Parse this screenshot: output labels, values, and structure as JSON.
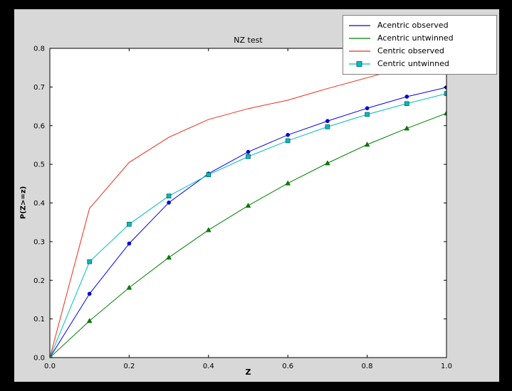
{
  "colors": {
    "window_bg": "#000000",
    "figure_bg": "#d8d8d8",
    "axes_bg": "#ffffff",
    "frame": "#000000"
  },
  "chart_data": {
    "type": "line",
    "title": "NZ test",
    "xlabel": "Z",
    "ylabel": "P(Z>=z)",
    "xlim": [
      0.0,
      1.0
    ],
    "ylim": [
      0.0,
      0.8
    ],
    "grid": false,
    "legend_position": "top-right",
    "xticks": [
      0.0,
      0.2,
      0.4,
      0.6,
      0.8,
      1.0
    ],
    "xtick_labels": [
      "0.0",
      "0.2",
      "0.4",
      "0.6",
      "0.8",
      "1.0"
    ],
    "yticks": [
      0.0,
      0.1,
      0.2,
      0.3,
      0.4,
      0.5,
      0.6,
      0.7,
      0.8
    ],
    "ytick_labels": [
      "0.0",
      "0.1",
      "0.2",
      "0.3",
      "0.4",
      "0.5",
      "0.6",
      "0.7",
      "0.8"
    ],
    "x": [
      0.0,
      0.1,
      0.2,
      0.3,
      0.4,
      0.5,
      0.6,
      0.7,
      0.8,
      0.9,
      1.0
    ],
    "series": [
      {
        "name": "Acentric observed",
        "color": "#0000ee",
        "marker": "circle",
        "marker_edge": "#000080",
        "marker_in_legend": false,
        "values": [
          0.0,
          0.165,
          0.295,
          0.401,
          0.476,
          0.532,
          0.576,
          0.612,
          0.645,
          0.675,
          0.699
        ]
      },
      {
        "name": "Acentric untwinned",
        "color": "#007f00",
        "marker": "triangle-up",
        "marker_edge": "#004d00",
        "marker_in_legend": false,
        "values": [
          0.0,
          0.095,
          0.181,
          0.259,
          0.33,
          0.393,
          0.451,
          0.503,
          0.551,
          0.593,
          0.632
        ]
      },
      {
        "name": "Centric observed",
        "color": "#ee2c1a",
        "marker": "none",
        "marker_edge": "#aa1208",
        "marker_in_legend": false,
        "values": [
          0.0,
          0.386,
          0.505,
          0.57,
          0.616,
          0.644,
          0.666,
          0.696,
          0.724,
          0.752,
          0.779
        ]
      },
      {
        "name": "Centric untwinned",
        "color": "#00bdbd",
        "marker": "square",
        "marker_edge": "#005f5f",
        "marker_in_legend": true,
        "values": [
          0.0,
          0.248,
          0.345,
          0.418,
          0.473,
          0.52,
          0.561,
          0.597,
          0.629,
          0.657,
          0.683
        ]
      }
    ]
  }
}
